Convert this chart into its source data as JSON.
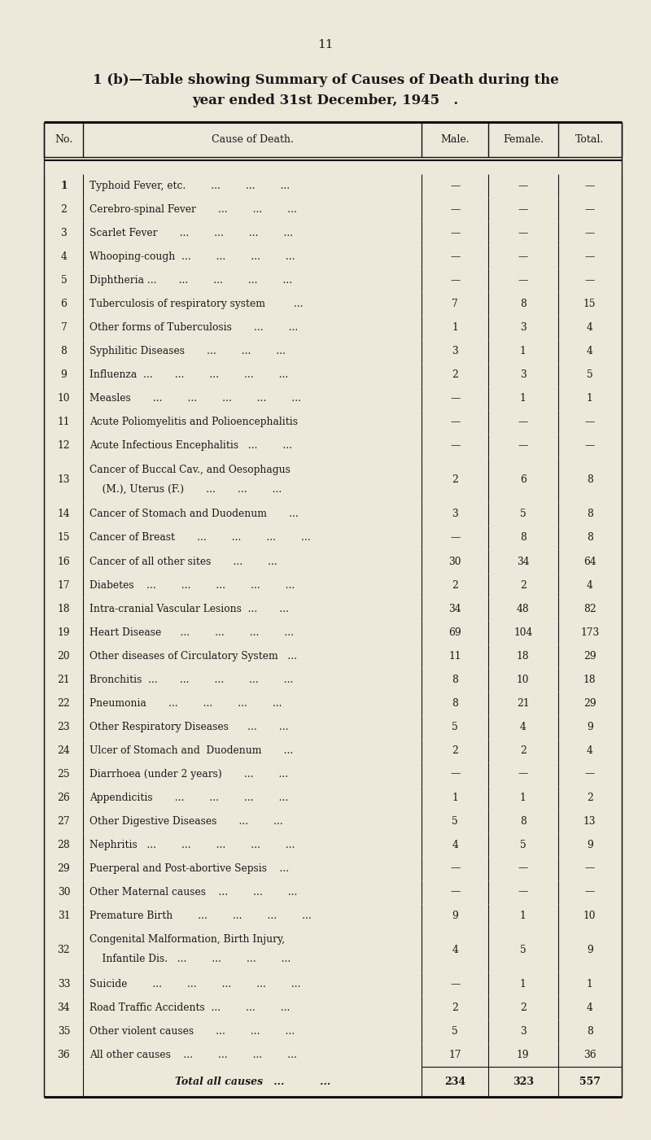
{
  "page_number": "11",
  "title_line1": "1 (b)—Table showing Summary of Causes of Death during the",
  "title_line2": "year ended 31st December, 1945   .",
  "col_headers": [
    "No.",
    "Cause of Death.",
    "Male.",
    "Female.",
    "Total."
  ],
  "rows": [
    {
      "no": "1",
      "cause": "Typhoid Fever, etc.        ...        ...        ...",
      "male": "—",
      "female": "—",
      "total": "—",
      "two_line": false
    },
    {
      "no": "2",
      "cause": "Cerebro-spinal Fever       ...        ...        ...",
      "male": "—",
      "female": "—",
      "total": "—",
      "two_line": false
    },
    {
      "no": "3",
      "cause": "Scarlet Fever       ...        ...        ...        ...",
      "male": "—",
      "female": "—",
      "total": "—",
      "two_line": false
    },
    {
      "no": "4",
      "cause": "Whooping-cough  ...        ...        ...        ...",
      "male": "—",
      "female": "—",
      "total": "—",
      "two_line": false
    },
    {
      "no": "5",
      "cause": "Diphtheria ...       ...        ...        ...        ...",
      "male": "—",
      "female": "—",
      "total": "—",
      "two_line": false
    },
    {
      "no": "6",
      "cause": "Tuberculosis of respiratory system         ...",
      "male": "7",
      "female": "8",
      "total": "15",
      "two_line": false
    },
    {
      "no": "7",
      "cause": "Other forms of Tuberculosis       ...        ...",
      "male": "1",
      "female": "3",
      "total": "4",
      "two_line": false
    },
    {
      "no": "8",
      "cause": "Syphilitic Diseases       ...        ...        ...",
      "male": "3",
      "female": "1",
      "total": "4",
      "two_line": false
    },
    {
      "no": "9",
      "cause": "Influenza  ...       ...        ...        ...        ...",
      "male": "2",
      "female": "3",
      "total": "5",
      "two_line": false
    },
    {
      "no": "10",
      "cause": "Measles       ...        ...        ...        ...        ...",
      "male": "—",
      "female": "1",
      "total": "1",
      "two_line": false
    },
    {
      "no": "11",
      "cause": "Acute Poliomyelitis and Polioencephalitis",
      "male": "—",
      "female": "—",
      "total": "—",
      "two_line": false
    },
    {
      "no": "12",
      "cause": "Acute Infectious Encephalitis   ...        ...",
      "male": "—",
      "female": "—",
      "total": "—",
      "two_line": false
    },
    {
      "no": "13",
      "cause": "Cancer of Buccal Cav., and Oesophagus",
      "cause2": "    (M.), Uterus (F.)       ...       ...        ...",
      "male": "2",
      "female": "6",
      "total": "8",
      "two_line": true
    },
    {
      "no": "14",
      "cause": "Cancer of Stomach and Duodenum       ...",
      "male": "3",
      "female": "5",
      "total": "8",
      "two_line": false
    },
    {
      "no": "15",
      "cause": "Cancer of Breast       ...        ...        ...        ...",
      "male": "—",
      "female": "8",
      "total": "8",
      "two_line": false
    },
    {
      "no": "16",
      "cause": "Cancer of all other sites       ...        ...",
      "male": "30",
      "female": "34",
      "total": "64",
      "two_line": false
    },
    {
      "no": "17",
      "cause": "Diabetes    ...        ...        ...        ...        ...",
      "male": "2",
      "female": "2",
      "total": "4",
      "two_line": false
    },
    {
      "no": "18",
      "cause": "Intra-cranial Vascular Lesions  ...       ...",
      "male": "34",
      "female": "48",
      "total": "82",
      "two_line": false
    },
    {
      "no": "19",
      "cause": "Heart Disease      ...        ...        ...        ...",
      "male": "69",
      "female": "104",
      "total": "173",
      "two_line": false
    },
    {
      "no": "20",
      "cause": "Other diseases of Circulatory System   ...",
      "male": "11",
      "female": "18",
      "total": "29",
      "two_line": false
    },
    {
      "no": "21",
      "cause": "Bronchitis  ...       ...        ...        ...        ...",
      "male": "8",
      "female": "10",
      "total": "18",
      "two_line": false
    },
    {
      "no": "22",
      "cause": "Pneumonia       ...        ...        ...        ...",
      "male": "8",
      "female": "21",
      "total": "29",
      "two_line": false
    },
    {
      "no": "23",
      "cause": "Other Respiratory Diseases      ...       ...",
      "male": "5",
      "female": "4",
      "total": "9",
      "two_line": false
    },
    {
      "no": "24",
      "cause": "Ulcer of Stomach and  Duodenum       ...",
      "male": "2",
      "female": "2",
      "total": "4",
      "two_line": false
    },
    {
      "no": "25",
      "cause": "Diarrhoea (under 2 years)       ...        ...",
      "male": "—",
      "female": "—",
      "total": "—",
      "two_line": false
    },
    {
      "no": "26",
      "cause": "Appendicitis       ...        ...        ...        ...",
      "male": "1",
      "female": "1",
      "total": "2",
      "two_line": false
    },
    {
      "no": "27",
      "cause": "Other Digestive Diseases       ...        ...",
      "male": "5",
      "female": "8",
      "total": "13",
      "two_line": false
    },
    {
      "no": "28",
      "cause": "Nephritis   ...        ...        ...        ...        ...",
      "male": "4",
      "female": "5",
      "total": "9",
      "two_line": false
    },
    {
      "no": "29",
      "cause": "Puerperal and Post-abortive Sepsis    ...",
      "male": "—",
      "female": "—",
      "total": "—",
      "two_line": false
    },
    {
      "no": "30",
      "cause": "Other Maternal causes    ...        ...        ...",
      "male": "—",
      "female": "—",
      "total": "—",
      "two_line": false
    },
    {
      "no": "31",
      "cause": "Premature Birth        ...        ...        ...        ...",
      "male": "9",
      "female": "1",
      "total": "10",
      "two_line": false
    },
    {
      "no": "32",
      "cause": "Congenital Malformation, Birth Injury,",
      "cause2": "    Infantile Dis.   ...        ...        ...        ...",
      "male": "4",
      "female": "5",
      "total": "9",
      "two_line": true
    },
    {
      "no": "33",
      "cause": "Suicide        ...        ...        ...        ...        ...",
      "male": "—",
      "female": "1",
      "total": "1",
      "two_line": false
    },
    {
      "no": "34",
      "cause": "Road Traffic Accidents  ...        ...        ...",
      "male": "2",
      "female": "2",
      "total": "4",
      "two_line": false
    },
    {
      "no": "35",
      "cause": "Other violent causes       ...        ...        ...",
      "male": "5",
      "female": "3",
      "total": "8",
      "two_line": false
    },
    {
      "no": "36",
      "cause": "All other causes    ...        ...        ...        ...",
      "male": "17",
      "female": "19",
      "total": "36",
      "two_line": false
    }
  ],
  "total_row": {
    "label": "Total all causes   ...          ...",
    "male": "234",
    "female": "323",
    "total": "557"
  },
  "bg_color": "#ede8da",
  "text_color": "#1a1a1a",
  "line_color": "#111111"
}
